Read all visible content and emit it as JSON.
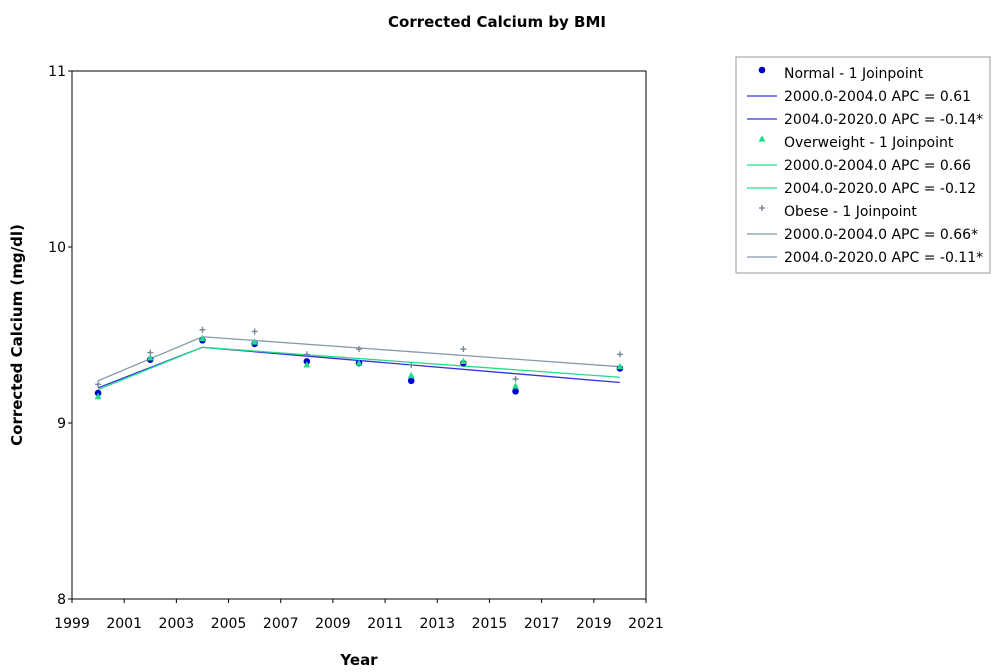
{
  "chart_data": {
    "type": "line",
    "title": "Corrected Calcium by BMI",
    "xlabel": "Year",
    "ylabel": "Corrected Calcium (mg/dl)",
    "xlim": [
      1999,
      2021
    ],
    "ylim": [
      8,
      11
    ],
    "x_ticks": [
      "1999",
      "2001",
      "2003",
      "2005",
      "2007",
      "2009",
      "2011",
      "2013",
      "2015",
      "2017",
      "2019",
      "2021"
    ],
    "y_ticks": [
      "8",
      "9",
      "10",
      "11"
    ],
    "grid": false,
    "legend_position": "top-right outside",
    "legend": [
      {
        "label": "Normal - 1 Joinpoint",
        "kind": "marker",
        "marker": "circle",
        "color": "#0000CC"
      },
      {
        "label": "2000.0-2004.0 APC  =  0.61",
        "kind": "line",
        "color": "#3333DD"
      },
      {
        "label": "2004.0-2020.0 APC  = -0.14*",
        "kind": "line",
        "color": "#3333DD"
      },
      {
        "label": "Overweight - 1 Joinpoint",
        "kind": "marker",
        "marker": "triangle",
        "color": "#22DD88"
      },
      {
        "label": "2000.0-2004.0 APC  =  0.66",
        "kind": "line",
        "color": "#22DD88"
      },
      {
        "label": "2004.0-2020.0 APC  = -0.12",
        "kind": "line",
        "color": "#22DD88"
      },
      {
        "label": "Obese - 1 Joinpoint",
        "kind": "marker",
        "marker": "plus",
        "color": "#778899"
      },
      {
        "label": "2000.0-2004.0 APC  =  0.66*",
        "kind": "line",
        "color": "#8899AA"
      },
      {
        "label": "2004.0-2020.0 APC  = -0.11*",
        "kind": "line",
        "color": "#8899AA"
      }
    ],
    "series": [
      {
        "name": "Normal",
        "color": "#0000CC",
        "line_color": "#3333DD",
        "marker": "circle",
        "x": [
          2000,
          2002,
          2004,
          2006,
          2008,
          2010,
          2012,
          2014,
          2016,
          2020
        ],
        "y": [
          9.17,
          9.36,
          9.47,
          9.45,
          9.35,
          9.34,
          9.24,
          9.34,
          9.18,
          9.31
        ],
        "fit": {
          "x": [
            2000,
            2004,
            2020
          ],
          "y": [
            9.2,
            9.43,
            9.23
          ]
        }
      },
      {
        "name": "Overweight",
        "color": "#22DD88",
        "line_color": "#22DD88",
        "marker": "triangle",
        "x": [
          2000,
          2002,
          2004,
          2006,
          2008,
          2010,
          2012,
          2014,
          2016,
          2020
        ],
        "y": [
          9.15,
          9.37,
          9.48,
          9.46,
          9.33,
          9.34,
          9.27,
          9.35,
          9.21,
          9.32
        ],
        "fit": {
          "x": [
            2000,
            2004,
            2020
          ],
          "y": [
            9.19,
            9.43,
            9.26
          ]
        }
      },
      {
        "name": "Obese",
        "color": "#778899",
        "line_color": "#8899AA",
        "marker": "plus",
        "x": [
          2000,
          2002,
          2004,
          2006,
          2008,
          2010,
          2012,
          2014,
          2016,
          2020
        ],
        "y": [
          9.22,
          9.4,
          9.53,
          9.52,
          9.39,
          9.42,
          9.33,
          9.42,
          9.25,
          9.39
        ],
        "fit": {
          "x": [
            2000,
            2004,
            2020
          ],
          "y": [
            9.24,
            9.49,
            9.32
          ]
        }
      }
    ]
  }
}
